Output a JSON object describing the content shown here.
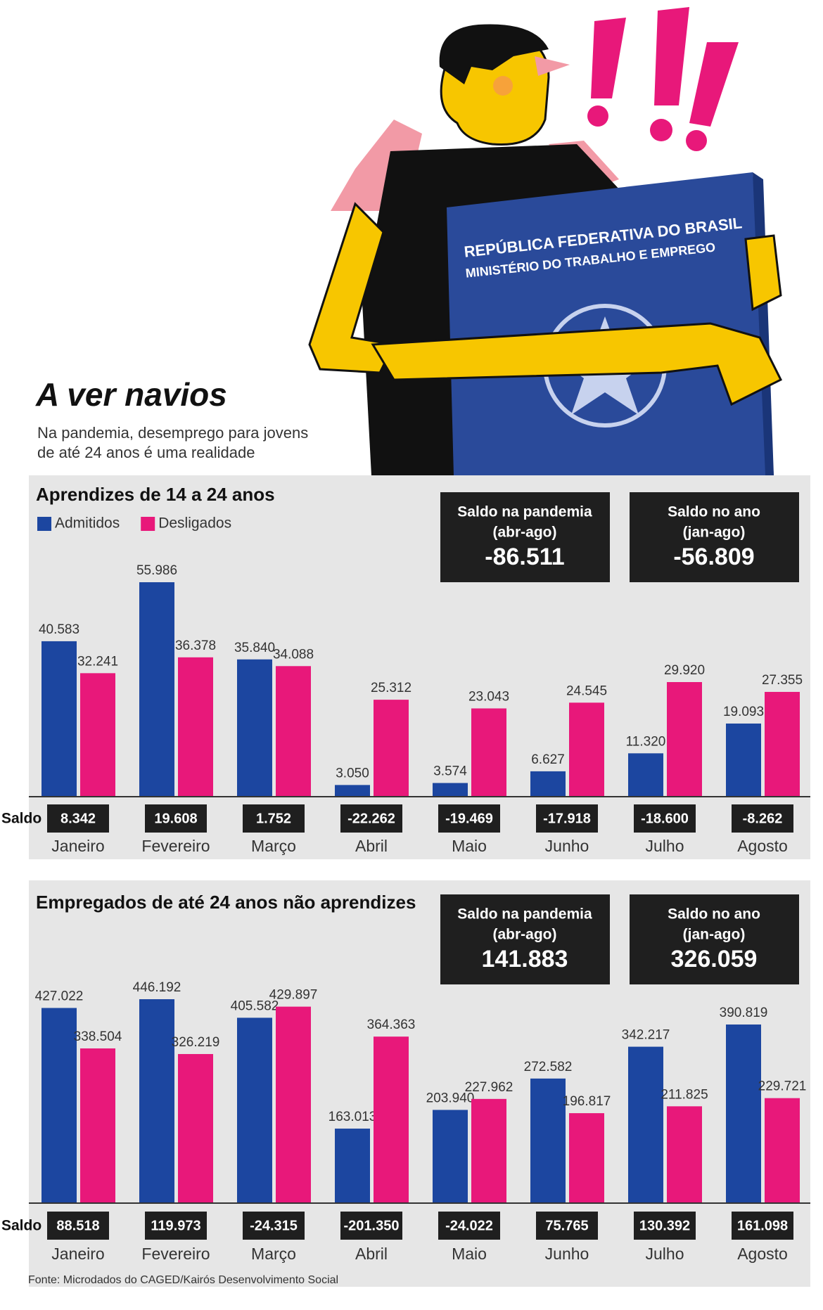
{
  "header": {
    "title": "A ver navios",
    "subtitle": [
      "Na pandemia, desemprego para jovens",
      "de até 24 anos é uma realidade"
    ]
  },
  "illustration": {
    "passport": [
      "REPÚBLICA FEDERATIVA DO BRASIL",
      "MINISTÉRIO DO TRABALHO E EMPREGO"
    ]
  },
  "chart_data": [
    {
      "type": "bar",
      "title": "Aprendizes de 14 a 24 anos",
      "categories": [
        "Janeiro",
        "Fevereiro",
        "Março",
        "Abril",
        "Maio",
        "Junho",
        "Julho",
        "Agosto"
      ],
      "series": [
        {
          "name": "Admitidos",
          "color": "#1c46a0",
          "values": [
            40583,
            55986,
            35840,
            3050,
            3574,
            6627,
            11320,
            19093
          ],
          "value_labels": [
            "40.583",
            "55.986",
            "35.840",
            "3.050",
            "3.574",
            "6.627",
            "11.320",
            "19.093"
          ]
        },
        {
          "name": "Desligados",
          "color": "#e8187a",
          "values": [
            32241,
            36378,
            34088,
            25312,
            23043,
            24545,
            29920,
            27355
          ],
          "value_labels": [
            "32.241",
            "36.378",
            "34.088",
            "25.312",
            "23.043",
            "24.545",
            "29.920",
            "27.355"
          ]
        }
      ],
      "saldo": {
        "label": "Saldo",
        "values": [
          8342,
          19608,
          1752,
          -22262,
          -19469,
          -17918,
          -18600,
          -8262
        ],
        "value_labels": [
          "8.342",
          "19.608",
          "1.752",
          "-22.262",
          "-19.469",
          "-17.918",
          "-18.600",
          "-8.262"
        ]
      },
      "summary": [
        {
          "title": [
            "Saldo na pandemia",
            "(abr-ago)"
          ],
          "value": -86511,
          "label": "-86.511"
        },
        {
          "title": [
            "Saldo no ano",
            "(jan-ago)"
          ],
          "value": -56809,
          "label": "-56.809"
        }
      ]
    },
    {
      "type": "bar",
      "title": "Empregados de até 24 anos não aprendizes",
      "categories": [
        "Janeiro",
        "Fevereiro",
        "Março",
        "Abril",
        "Maio",
        "Junho",
        "Julho",
        "Agosto"
      ],
      "series": [
        {
          "color": "#1c46a0",
          "values": [
            427022,
            446192,
            405582,
            163013,
            203940,
            272582,
            342217,
            390819
          ],
          "value_labels": [
            "427.022",
            "446.192",
            "405.582",
            "163.013",
            "203.940",
            "272.582",
            "342.217",
            "390.819"
          ]
        },
        {
          "color": "#e8187a",
          "values": [
            338504,
            326219,
            429897,
            364363,
            227962,
            196817,
            211825,
            229721
          ],
          "value_labels": [
            "338.504",
            "326.219",
            "429.897",
            "364.363",
            "227.962",
            "196.817",
            "211.825",
            "229.721"
          ]
        }
      ],
      "saldo": {
        "label": "Saldo",
        "values": [
          88518,
          119973,
          -24315,
          -201350,
          -24022,
          75765,
          130392,
          161098
        ],
        "value_labels": [
          "88.518",
          "119.973",
          "-24.315",
          "-201.350",
          "-24.022",
          "75.765",
          "130.392",
          "161.098"
        ]
      },
      "summary": [
        {
          "title": [
            "Saldo na pandemia",
            "(abr-ago)"
          ],
          "value": 141883,
          "label": "141.883"
        },
        {
          "title": [
            "Saldo no ano",
            "(jan-ago)"
          ],
          "value": 326059,
          "label": "326.059"
        }
      ]
    }
  ],
  "source": "Fonte: Microdados do CAGED/Kairós Desenvolvimento Social"
}
